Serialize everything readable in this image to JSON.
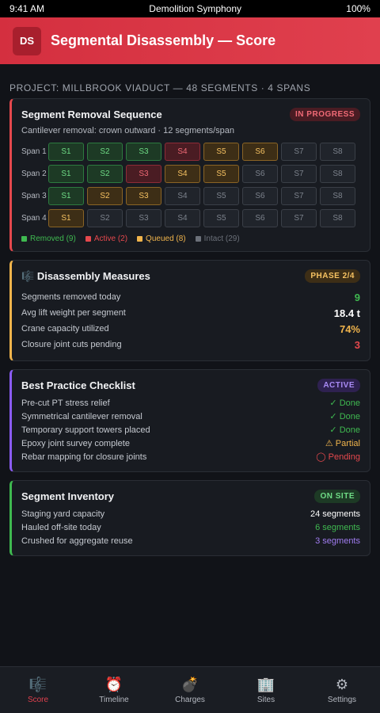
{
  "status_bar": {
    "time": "9:41 AM",
    "title": "Demolition Symphony",
    "battery": "100%"
  },
  "header": {
    "badge": "DS",
    "title": "Segmental Disassembly — Score"
  },
  "project_line": "PROJECT: MILLBROOK VIADUCT — 48 SEGMENTS · 4 SPANS",
  "sequence": {
    "title": "Segment Removal Sequence",
    "badge": "IN PROGRESS",
    "subtitle": "Cantilever removal: crown outward · 12 segments/span",
    "rows": [
      {
        "label": "Span 1",
        "cells": [
          {
            "t": "S1",
            "s": "removed"
          },
          {
            "t": "S2",
            "s": "removed"
          },
          {
            "t": "S3",
            "s": "removed"
          },
          {
            "t": "S4",
            "s": "active"
          },
          {
            "t": "S5",
            "s": "queued"
          },
          {
            "t": "S6",
            "s": "queued"
          },
          {
            "t": "S7",
            "s": "intact"
          },
          {
            "t": "S8",
            "s": "intact"
          }
        ]
      },
      {
        "label": "Span 2",
        "cells": [
          {
            "t": "S1",
            "s": "removed"
          },
          {
            "t": "S2",
            "s": "removed"
          },
          {
            "t": "S3",
            "s": "active"
          },
          {
            "t": "S4",
            "s": "queued"
          },
          {
            "t": "S5",
            "s": "queued"
          },
          {
            "t": "S6",
            "s": "intact"
          },
          {
            "t": "S7",
            "s": "intact"
          },
          {
            "t": "S8",
            "s": "intact"
          }
        ]
      },
      {
        "label": "Span 3",
        "cells": [
          {
            "t": "S1",
            "s": "removed"
          },
          {
            "t": "S2",
            "s": "queued"
          },
          {
            "t": "S3",
            "s": "queued"
          },
          {
            "t": "S4",
            "s": "intact"
          },
          {
            "t": "S5",
            "s": "intact"
          },
          {
            "t": "S6",
            "s": "intact"
          },
          {
            "t": "S7",
            "s": "intact"
          },
          {
            "t": "S8",
            "s": "intact"
          }
        ]
      },
      {
        "label": "Span 4",
        "cells": [
          {
            "t": "S1",
            "s": "queued"
          },
          {
            "t": "S2",
            "s": "intact"
          },
          {
            "t": "S3",
            "s": "intact"
          },
          {
            "t": "S4",
            "s": "intact"
          },
          {
            "t": "S5",
            "s": "intact"
          },
          {
            "t": "S6",
            "s": "intact"
          },
          {
            "t": "S7",
            "s": "intact"
          },
          {
            "t": "S8",
            "s": "intact"
          }
        ]
      }
    ],
    "legend": [
      {
        "label": "Removed (9)",
        "color": "#3fb950"
      },
      {
        "label": "Active (2)",
        "color": "#e5484d"
      },
      {
        "label": "Queued (8)",
        "color": "#f0b44c"
      },
      {
        "label": "Intact (29)",
        "color": "#6b7079"
      }
    ]
  },
  "measures": {
    "icon": "🎼",
    "title": "Disassembly Measures",
    "badge": "PHASE 2/4",
    "rows": [
      {
        "label": "Segments removed today",
        "value": "9",
        "color": "#3fb950"
      },
      {
        "label": "Avg lift weight per segment",
        "value": "18.4 t",
        "color": "#ffffff"
      },
      {
        "label": "Crane capacity utilized",
        "value": "74%",
        "color": "#f0b44c"
      },
      {
        "label": "Closure joint cuts pending",
        "value": "3",
        "color": "#e5484d"
      }
    ]
  },
  "checklist": {
    "title": "Best Practice Checklist",
    "badge": "ACTIVE",
    "rows": [
      {
        "label": "Pre-cut PT stress relief",
        "status": "✓ Done",
        "color": "#3fb950"
      },
      {
        "label": "Symmetrical cantilever removal",
        "status": "✓ Done",
        "color": "#3fb950"
      },
      {
        "label": "Temporary support towers placed",
        "status": "✓ Done",
        "color": "#3fb950"
      },
      {
        "label": "Epoxy joint survey complete",
        "status": "⚠ Partial",
        "color": "#f0b44c"
      },
      {
        "label": "Rebar mapping for closure joints",
        "status": "◯ Pending",
        "color": "#e5484d"
      }
    ]
  },
  "inventory": {
    "title": "Segment Inventory",
    "badge": "ON SITE",
    "rows": [
      {
        "label": "Staging yard capacity",
        "value": "24 segments",
        "color": "#ffffff"
      },
      {
        "label": "Hauled off-site today",
        "value": "6 segments",
        "color": "#3fb950"
      },
      {
        "label": "Crushed for aggregate reuse",
        "value": "3 segments",
        "color": "#a07cf0"
      }
    ]
  },
  "nav": [
    {
      "label": "Score",
      "icon": "🎼",
      "name": "score",
      "current": true
    },
    {
      "label": "Timeline",
      "icon": "⏰",
      "name": "timeline",
      "current": false
    },
    {
      "label": "Charges",
      "icon": "💣",
      "name": "charges",
      "current": false
    },
    {
      "label": "Sites",
      "icon": "🏢",
      "name": "sites",
      "current": false
    },
    {
      "label": "Settings",
      "icon": "⚙",
      "name": "settings",
      "current": false
    }
  ]
}
